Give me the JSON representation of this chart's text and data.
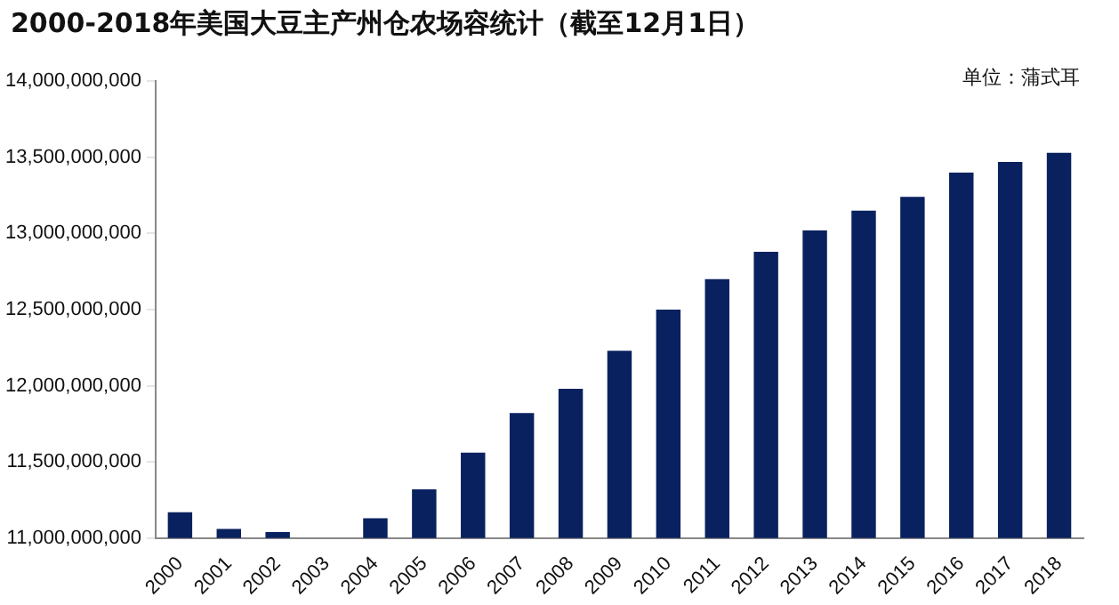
{
  "chart_data": {
    "type": "bar",
    "title": "2000-2018年美国大豆主产州仓农场容统计（截至12月1日）",
    "annotations": [
      "单位：蒲式耳"
    ],
    "categories": [
      "2000",
      "2001",
      "2002",
      "2003",
      "2004",
      "2005",
      "2006",
      "2007",
      "2008",
      "2009",
      "2010",
      "2011",
      "2012",
      "2013",
      "2014",
      "2015",
      "2016",
      "2017",
      "2018"
    ],
    "values": [
      11170000000,
      11060000000,
      11040000000,
      null,
      11130000000,
      11320000000,
      11560000000,
      11820000000,
      11980000000,
      12230000000,
      12500000000,
      12700000000,
      12880000000,
      13020000000,
      13150000000,
      13240000000,
      13400000000,
      13470000000,
      13530000000
    ],
    "color": "#0a215f",
    "ylim": [
      11000000000,
      14000000000
    ],
    "yticks": [
      {
        "value": 11000000000,
        "label": "11,000,000,000"
      },
      {
        "value": 11500000000,
        "label": "11,500,000,000"
      },
      {
        "value": 12000000000,
        "label": "12,000,000,000"
      },
      {
        "value": 12500000000,
        "label": "12,500,000,000"
      },
      {
        "value": 13000000000,
        "label": "13,000,000,000"
      },
      {
        "value": 13500000000,
        "label": "13,500,000,000"
      },
      {
        "value": 14000000000,
        "label": "14,000,000,000"
      }
    ],
    "grid": false,
    "legend": false
  }
}
